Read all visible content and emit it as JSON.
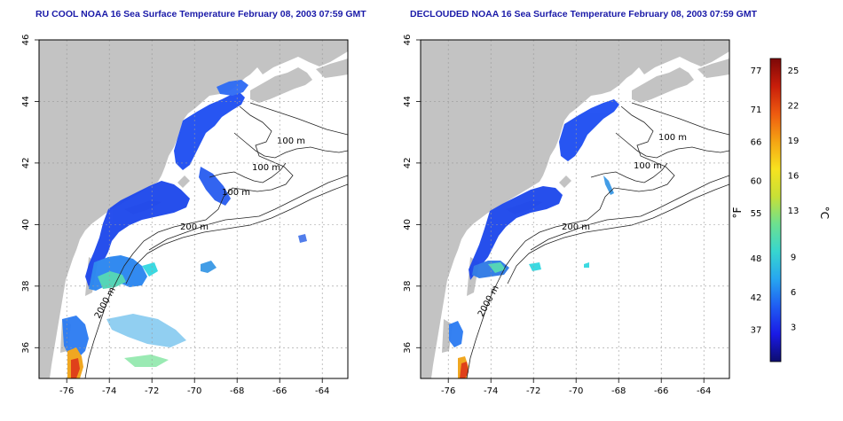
{
  "left_panel": {
    "title": "RU COOL NOAA 16 Sea Surface Temperature February 08, 2003 07:59 GMT",
    "bathy_labels": [
      "100 m",
      "100 m",
      "100 m",
      "200 m",
      "2000 m"
    ]
  },
  "right_panel": {
    "title": "DECLOUDED NOAA 16 Sea Surface Temperature February 08, 2003 07:59 GMT",
    "bathy_labels": [
      "100 m",
      "100 m",
      "200 m",
      "2000 m"
    ]
  },
  "axes": {
    "x_ticks": [
      "-76",
      "-74",
      "-72",
      "-70",
      "-68",
      "-66",
      "-64"
    ],
    "x_values": [
      -76,
      -74,
      -72,
      -70,
      -68,
      -66,
      -64
    ],
    "y_ticks": [
      "36",
      "38",
      "40",
      "42",
      "44",
      "46"
    ],
    "y_values": [
      36,
      38,
      40,
      42,
      44,
      46
    ],
    "lon_range": [
      -77.3,
      -62.8
    ],
    "lat_range": [
      35,
      46
    ]
  },
  "colorbar": {
    "f_label": "°F",
    "c_label": "°C",
    "f_ticks": [
      "77",
      "71",
      "66",
      "60",
      "55",
      "48",
      "42",
      "37"
    ],
    "c_ticks": [
      "25",
      "22",
      "19",
      "16",
      "13",
      "9",
      "6",
      "3"
    ],
    "range_c": [
      0,
      26
    ],
    "colors": [
      "#0d0d6e",
      "#1a1ae6",
      "#1f5cf2",
      "#27a6f0",
      "#37d6cf",
      "#6de08f",
      "#c8e036",
      "#f7e21f",
      "#f5a313",
      "#ee5a10",
      "#c81d0a",
      "#7c0808"
    ]
  },
  "colors": {
    "land": "#c3c3c3",
    "ocean": "#ffffff",
    "title": "#1a1aa8",
    "grid": "#9a9a9a"
  }
}
